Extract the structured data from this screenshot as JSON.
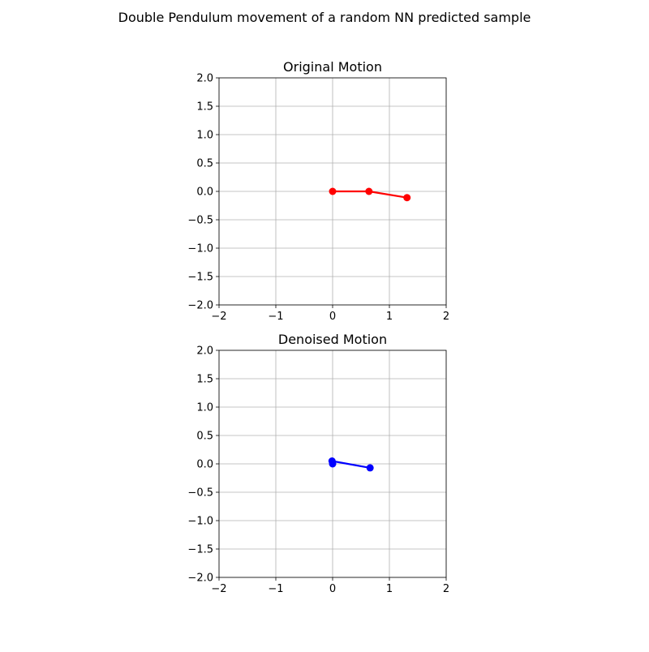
{
  "figure": {
    "suptitle": "Double Pendulum movement of a random NN predicted sample"
  },
  "chart_data": [
    {
      "type": "line",
      "title": "Original Motion",
      "xlabel": "",
      "ylabel": "",
      "xlim": [
        -2,
        2
      ],
      "ylim": [
        -2,
        2
      ],
      "xticks": [
        "−2",
        "−1",
        "0",
        "1",
        "2"
      ],
      "yticks": [
        "2.0",
        "1.5",
        "1.0",
        "0.5",
        "0.0",
        "−0.5",
        "−1.0",
        "−1.5",
        "−2.0"
      ],
      "grid": true,
      "series": [
        {
          "x": [
            0,
            0.64,
            1.31
          ],
          "y": [
            0,
            0,
            -0.11
          ],
          "color": "#ff0000",
          "marker": "circle"
        }
      ]
    },
    {
      "type": "line",
      "title": "Denoised Motion",
      "xlabel": "",
      "ylabel": "",
      "xlim": [
        -2,
        2
      ],
      "ylim": [
        -2,
        2
      ],
      "xticks": [
        "−2",
        "−1",
        "0",
        "1",
        "2"
      ],
      "yticks": [
        "2.0",
        "1.5",
        "1.0",
        "0.5",
        "0.0",
        "−0.5",
        "−1.0",
        "−1.5",
        "−2.0"
      ],
      "grid": true,
      "series": [
        {
          "x": [
            0,
            -0.01,
            0.66
          ],
          "y": [
            0,
            0.05,
            -0.07
          ],
          "color": "#0000ff",
          "marker": "circle"
        }
      ]
    }
  ]
}
